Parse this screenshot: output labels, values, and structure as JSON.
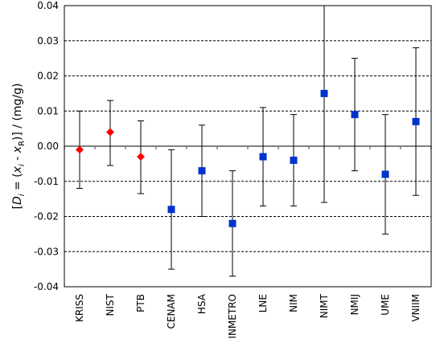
{
  "chart_data": {
    "type": "scatter",
    "y_axis_label": {
      "prefix": "[",
      "d": "D",
      "d_sub": "i",
      "eq": " = (",
      "x1": "x",
      "x1_sub": "i",
      "minus": " - ",
      "x2": "x",
      "x2_sub": "R",
      "suffix": ")] / (mg/g)"
    },
    "ylim": [
      -0.04,
      0.04
    ],
    "y_ticks": [
      "-0.04",
      "-0.03",
      "-0.02",
      "-0.01",
      "0.00",
      "0.01",
      "0.02",
      "0.03",
      "0.04"
    ],
    "y_tick_values": [
      -0.04,
      -0.03,
      -0.02,
      -0.01,
      0.0,
      0.01,
      0.02,
      0.03,
      0.04
    ],
    "categories": [
      "KRISS",
      "NIST",
      "PTB",
      "CENAM",
      "HSA",
      "INMETRO",
      "LNE",
      "NIM",
      "NIMT",
      "NMIJ",
      "UME",
      "VNIIM"
    ],
    "grid": "horizontal-dashed",
    "points": [
      {
        "value": -0.001,
        "lower": -0.012,
        "upper": 0.01,
        "marker": "diamond",
        "color": "#ff0000"
      },
      {
        "value": 0.004,
        "lower": -0.0055,
        "upper": 0.013,
        "marker": "diamond",
        "color": "#ff0000"
      },
      {
        "value": -0.003,
        "lower": -0.0135,
        "upper": 0.0072,
        "marker": "diamond",
        "color": "#ff0000"
      },
      {
        "value": -0.018,
        "lower": -0.035,
        "upper": -0.001,
        "marker": "square",
        "color": "#0033cc"
      },
      {
        "value": -0.007,
        "lower": -0.02,
        "upper": 0.006,
        "marker": "square",
        "color": "#0033cc"
      },
      {
        "value": -0.022,
        "lower": -0.037,
        "upper": -0.007,
        "marker": "square",
        "color": "#0033cc"
      },
      {
        "value": -0.003,
        "lower": -0.017,
        "upper": 0.011,
        "marker": "square",
        "color": "#0033cc"
      },
      {
        "value": -0.004,
        "lower": -0.017,
        "upper": 0.009,
        "marker": "square",
        "color": "#0033cc"
      },
      {
        "value": 0.015,
        "lower": -0.016,
        "upper": 0.04,
        "marker": "square",
        "color": "#0033cc"
      },
      {
        "value": 0.009,
        "lower": -0.007,
        "upper": 0.025,
        "marker": "square",
        "color": "#0033cc"
      },
      {
        "value": -0.008,
        "lower": -0.025,
        "upper": 0.009,
        "marker": "square",
        "color": "#0033cc"
      },
      {
        "value": 0.007,
        "lower": -0.014,
        "upper": 0.028,
        "marker": "square",
        "color": "#0033cc"
      }
    ],
    "colors": {
      "reference": "#ff0000",
      "participant": "#0033cc",
      "zero_line": "#808080",
      "grid": "#000000"
    }
  }
}
